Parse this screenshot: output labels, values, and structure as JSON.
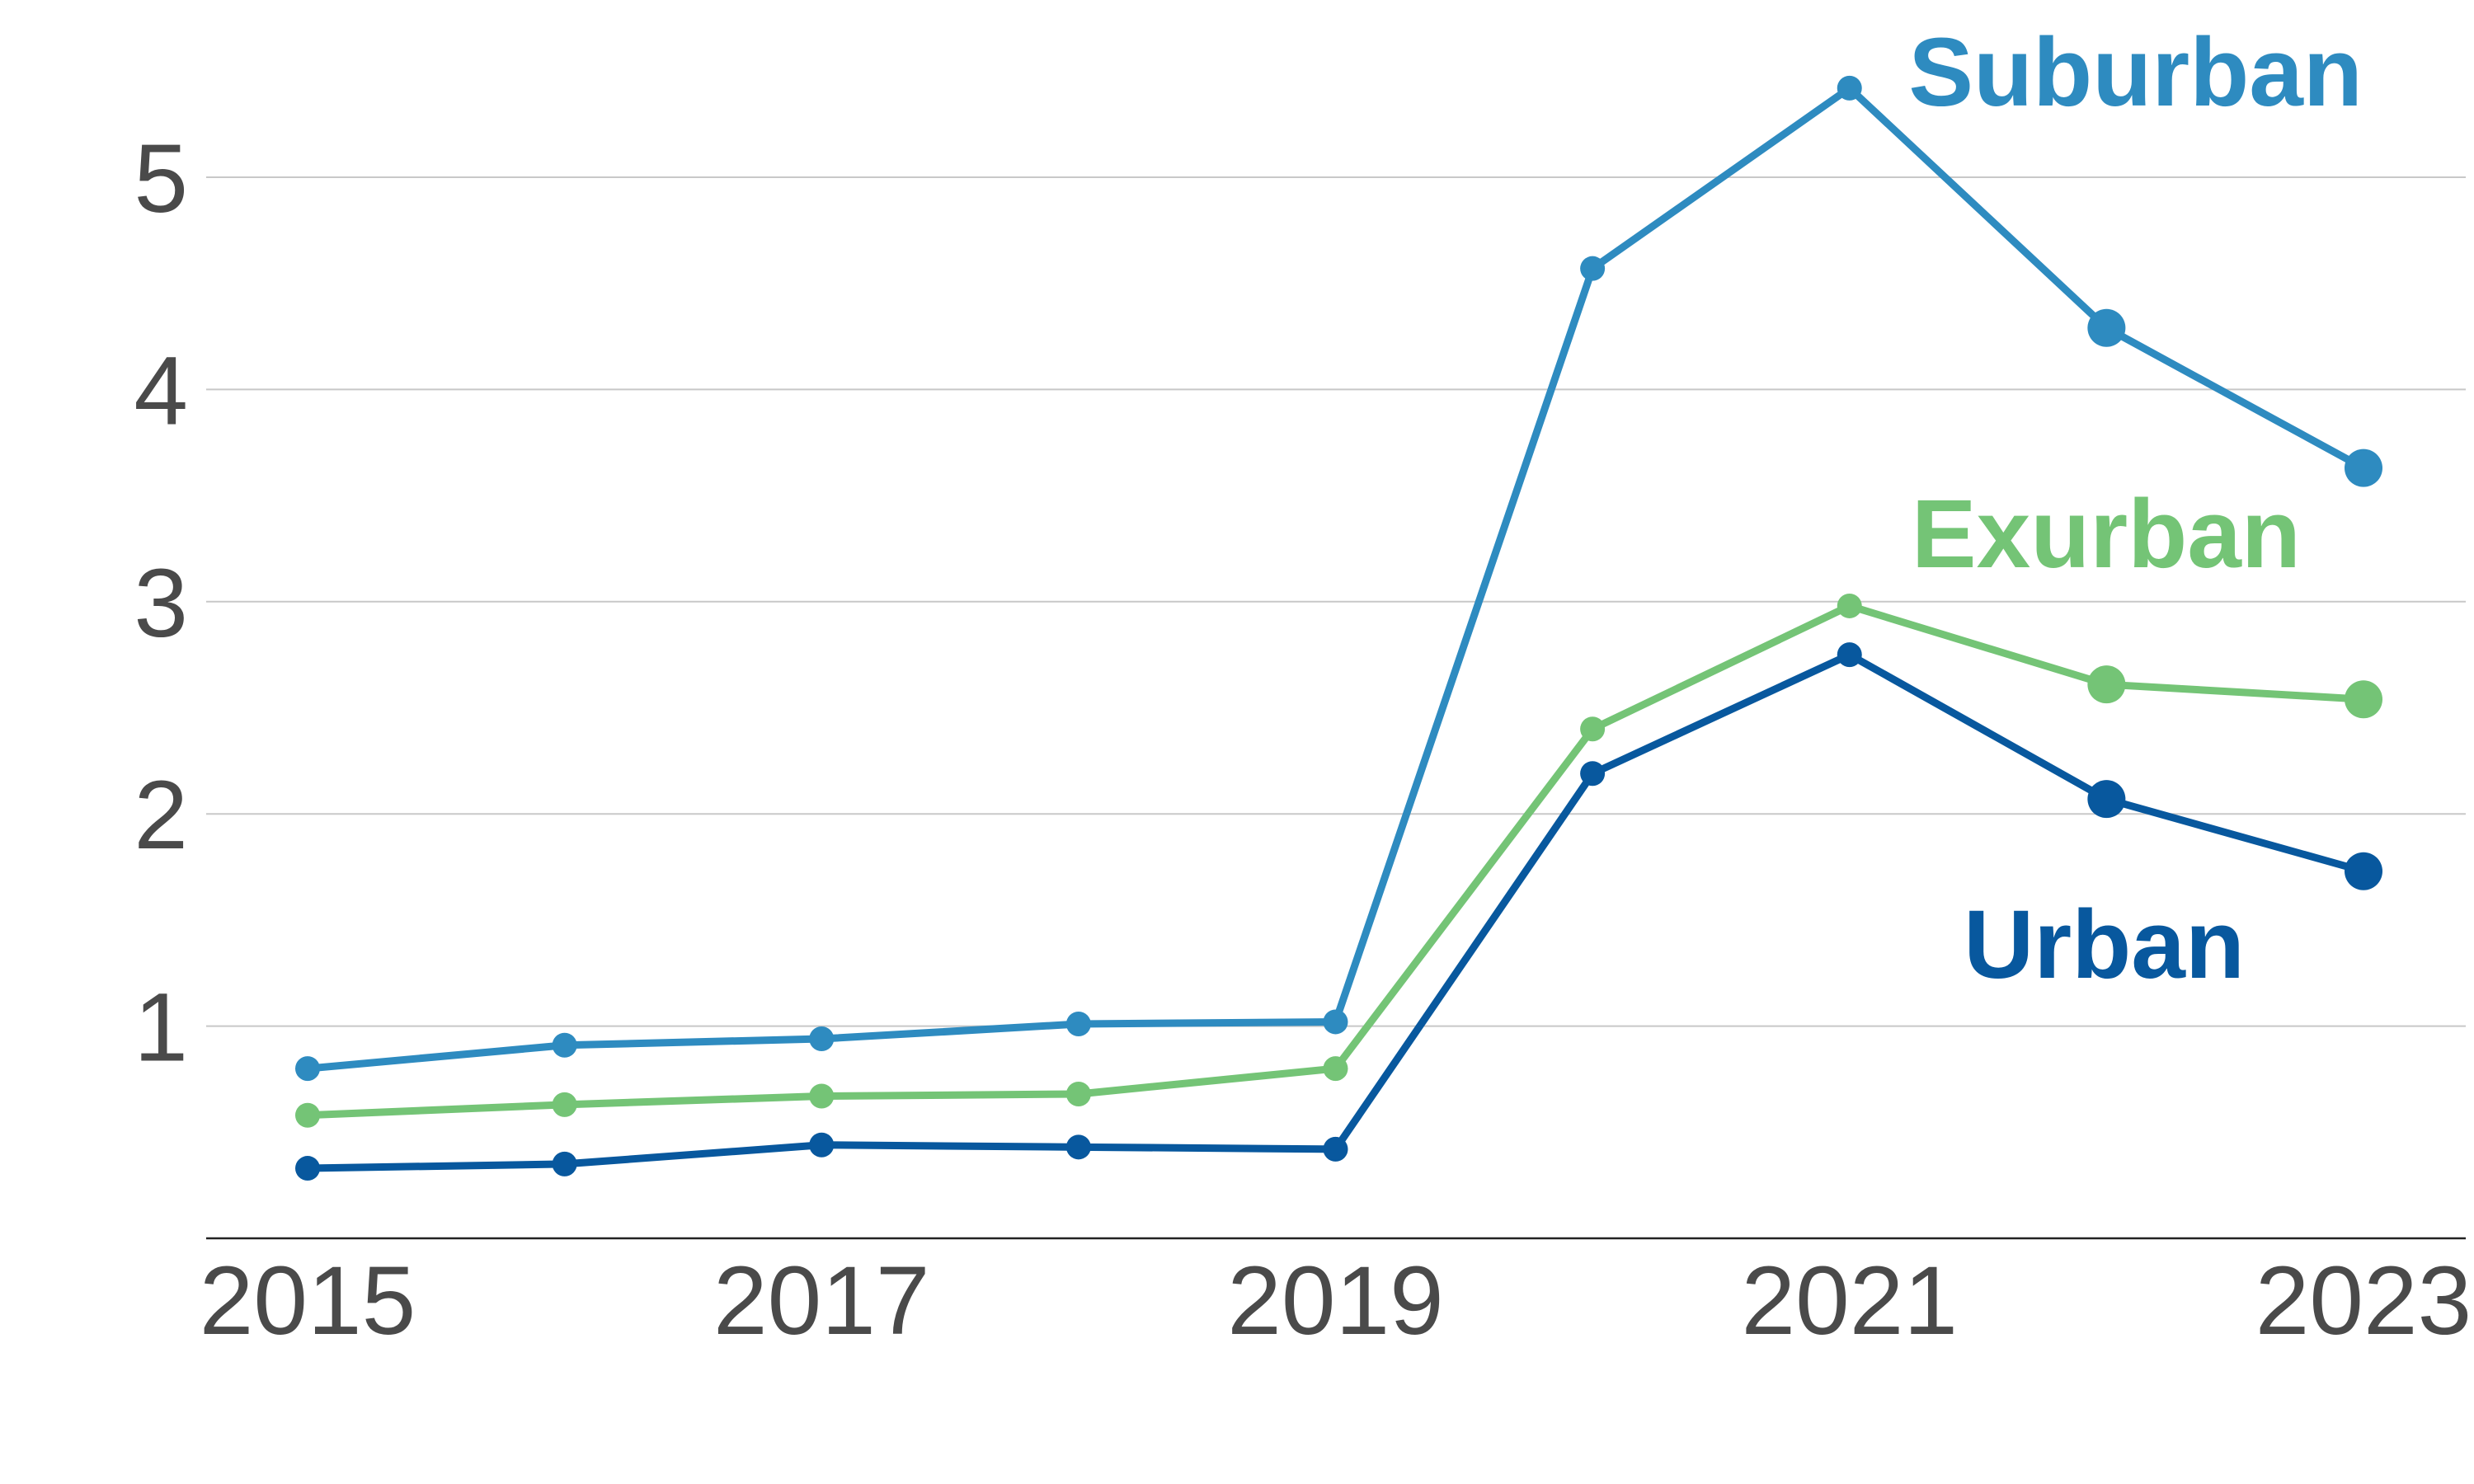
{
  "chart_data": {
    "type": "line",
    "x": [
      2015,
      2016,
      2017,
      2018,
      2019,
      2020,
      2021,
      2022,
      2023
    ],
    "x_ticks": [
      "2015",
      "2017",
      "2019",
      "2021",
      "2023"
    ],
    "y_ticks": [
      "1",
      "2",
      "3",
      "4",
      "5"
    ],
    "ylim": [
      0,
      5.4
    ],
    "xlim": [
      2015,
      2023
    ],
    "grid": "horizontal",
    "series": [
      {
        "name": "Suburban",
        "color": "#2e8bc0",
        "values": [
          0.8,
          0.91,
          0.94,
          1.01,
          1.02,
          4.57,
          5.42,
          4.29,
          3.63
        ]
      },
      {
        "name": "Exurban",
        "color": "#74c476",
        "values": [
          0.58,
          0.63,
          0.67,
          0.68,
          0.8,
          2.4,
          2.98,
          2.61,
          2.54
        ]
      },
      {
        "name": "Urban",
        "color": "#08589e",
        "values": [
          0.33,
          0.35,
          0.44,
          0.43,
          0.42,
          2.19,
          2.75,
          2.07,
          1.73
        ]
      }
    ]
  }
}
